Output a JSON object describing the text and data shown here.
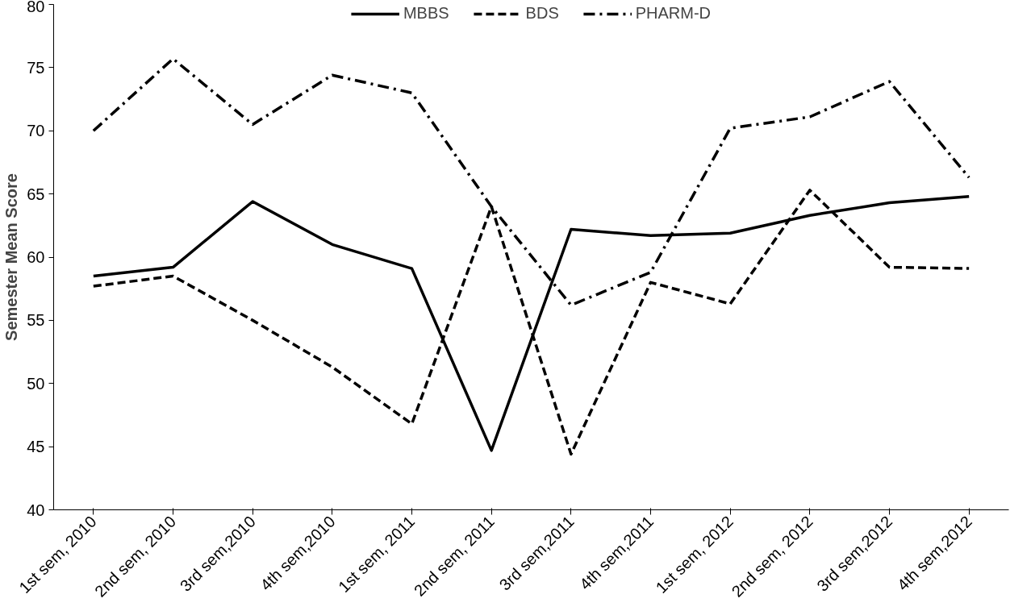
{
  "chart_data": {
    "type": "line",
    "ylabel": "Semester Mean Score",
    "categories": [
      "1st sem, 2010",
      "2nd sem, 2010",
      "3rd sem,2010",
      "4th sem,2010",
      "1st sem, 2011",
      "2nd sem, 2011",
      "3rd sem,2011",
      "4th sem,2011",
      "1st sem, 2012",
      "2nd sem, 2012",
      "3rd sem,2012",
      "4th sem,2012"
    ],
    "series": [
      {
        "name": "MBBS",
        "color": "#000000",
        "line_style": "solid",
        "values": [
          58.5,
          59.2,
          64.4,
          61.0,
          59.1,
          44.7,
          62.2,
          61.7,
          61.9,
          63.3,
          64.3,
          64.8
        ]
      },
      {
        "name": "BDS",
        "color": "#000000",
        "line_style": "dashed",
        "values": [
          57.7,
          58.5,
          55.0,
          51.3,
          46.8,
          64.0,
          44.4,
          58.0,
          56.3,
          65.3,
          59.2,
          59.1
        ]
      },
      {
        "name": "PHARM-D",
        "color": "#000000",
        "line_style": "dashdot",
        "values": [
          70.0,
          75.7,
          70.5,
          74.4,
          73.0,
          64.0,
          56.2,
          58.8,
          70.2,
          71.1,
          73.9,
          66.3
        ]
      }
    ],
    "ylim": [
      40,
      80
    ],
    "yticks": [
      40,
      45,
      50,
      55,
      60,
      65,
      70,
      75,
      80
    ],
    "grid": false,
    "legend": "top",
    "marker": "none"
  }
}
